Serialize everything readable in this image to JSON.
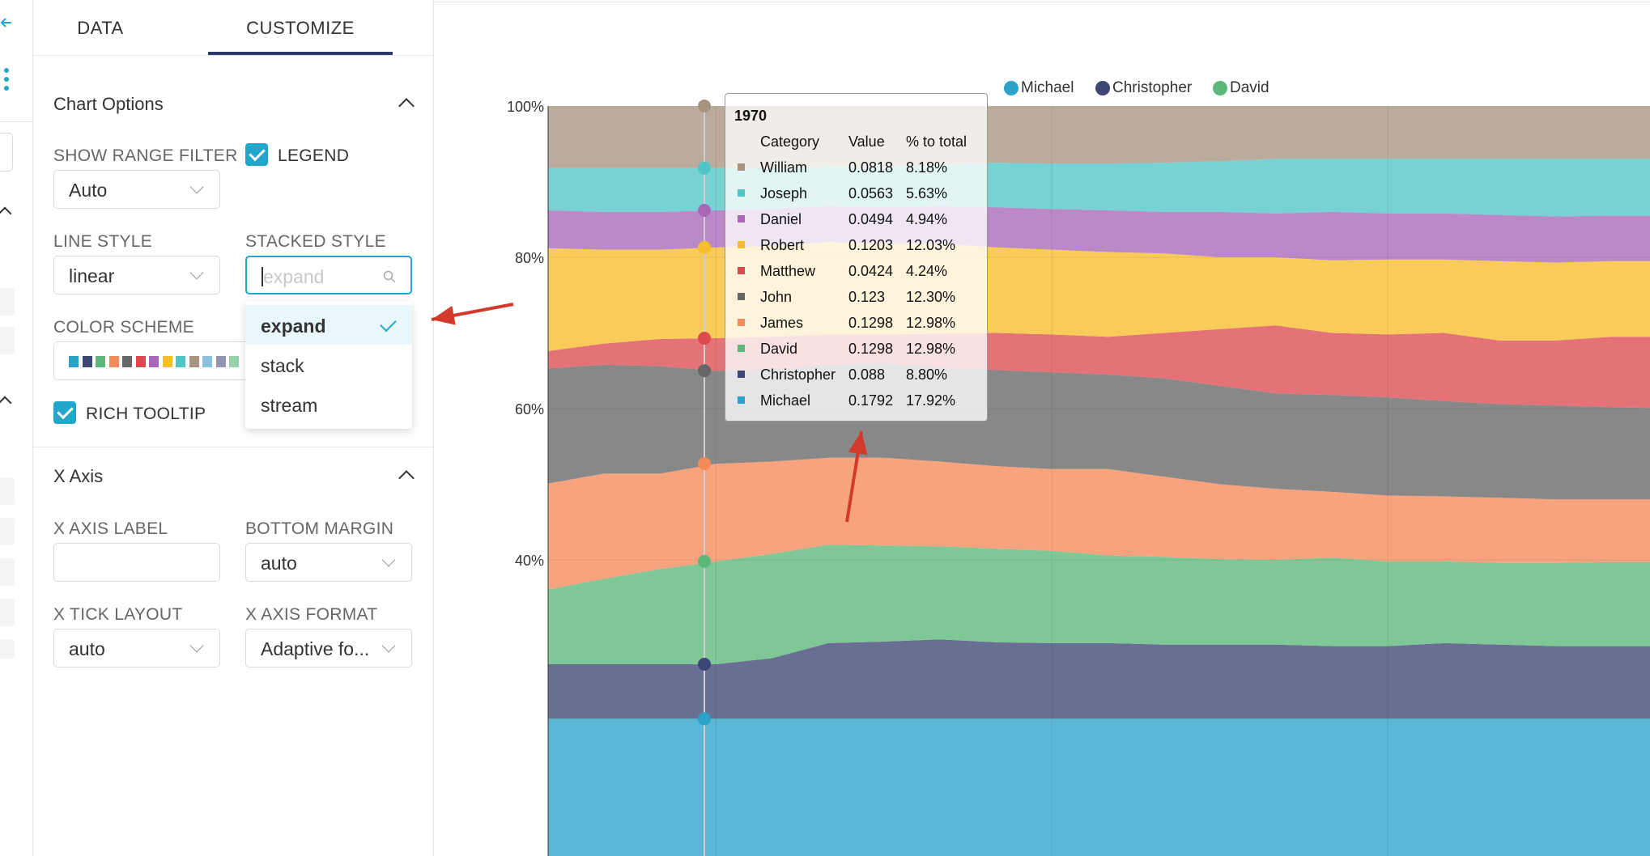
{
  "tabs": {
    "data_label": "DATA",
    "customize_label": "CUSTOMIZE"
  },
  "chart_options": {
    "section_title": "Chart Options",
    "show_range_filter": {
      "label": "SHOW RANGE FILTER",
      "value": "Auto"
    },
    "legend": {
      "label": "LEGEND",
      "checked": true
    },
    "line_style": {
      "label": "LINE STYLE",
      "value": "linear"
    },
    "stacked_style": {
      "label": "STACKED STYLE",
      "placeholder": "expand",
      "options": [
        {
          "label": "expand",
          "selected": true
        },
        {
          "label": "stack"
        },
        {
          "label": "stream"
        }
      ]
    },
    "color_scheme": {
      "label": "COLOR SCHEME",
      "swatches": [
        "#2ba3c9",
        "#3d4675",
        "#5cb77a",
        "#f58a5a",
        "#666666",
        "#dc4a4f",
        "#a868b7",
        "#f7be2b",
        "#4fc5c7",
        "#a69481",
        "#8ac3e0",
        "#8f95b2",
        "#96d1a8"
      ]
    },
    "rich_tooltip": {
      "label": "RICH TOOLTIP",
      "checked": true
    }
  },
  "x_axis": {
    "section_title": "X Axis",
    "x_axis_label": {
      "label": "X AXIS LABEL",
      "value": ""
    },
    "bottom_margin": {
      "label": "BOTTOM MARGIN",
      "value": "auto"
    },
    "x_tick_layout": {
      "label": "X TICK LAYOUT",
      "value": "auto"
    },
    "x_axis_format": {
      "label": "X AXIS FORMAT",
      "value": "Adaptive fo..."
    }
  },
  "legend_items": [
    {
      "name": "Michael",
      "color": "#2ba3c9"
    },
    {
      "name": "Christopher",
      "color": "#3d4675"
    },
    {
      "name": "David",
      "color": "#5cb77a"
    }
  ],
  "tooltip": {
    "title": "1970",
    "headers": [
      "Category",
      "Value",
      "% to total"
    ],
    "rows": [
      {
        "category": "William",
        "value": "0.0818",
        "pct": "8.18%",
        "color": "#a69481"
      },
      {
        "category": "Joseph",
        "value": "0.0563",
        "pct": "5.63%",
        "color": "#4fc5c7"
      },
      {
        "category": "Daniel",
        "value": "0.0494",
        "pct": "4.94%",
        "color": "#a868b7"
      },
      {
        "category": "Robert",
        "value": "0.1203",
        "pct": "12.03%",
        "color": "#f7be2b"
      },
      {
        "category": "Matthew",
        "value": "0.0424",
        "pct": "4.24%",
        "color": "#dc4a4f"
      },
      {
        "category": "John",
        "value": "0.123",
        "pct": "12.30%",
        "color": "#666666"
      },
      {
        "category": "James",
        "value": "0.1298",
        "pct": "12.98%",
        "color": "#f58a5a"
      },
      {
        "category": "David",
        "value": "0.1298",
        "pct": "12.98%",
        "color": "#5cb77a"
      },
      {
        "category": "Christopher",
        "value": "0.088",
        "pct": "8.80%",
        "color": "#3d4675"
      },
      {
        "category": "Michael",
        "value": "0.1792",
        "pct": "17.92%",
        "color": "#2ba3c9"
      }
    ]
  },
  "chart_data": {
    "type": "area",
    "stacked_style": "expand",
    "y_ticks": [
      "100%",
      "80%",
      "60%",
      "40%"
    ],
    "ylim": [
      0.26,
      1.0
    ],
    "x_steps": [
      0,
      1,
      2,
      3,
      4,
      5,
      6,
      7,
      8,
      9,
      10,
      11,
      12,
      13,
      14,
      15,
      16,
      17,
      18,
      19,
      20
    ],
    "hover_x_index": 3,
    "boundaries": [
      {
        "series": "Michael",
        "color": "#2ba3c9",
        "top": [
          0.19,
          0.19,
          0.19,
          0.19,
          0.19,
          0.19,
          0.19,
          0.19,
          0.19,
          0.19,
          0.19,
          0.19,
          0.19,
          0.19,
          0.19,
          0.19,
          0.19,
          0.19,
          0.19,
          0.19,
          0.19
        ]
      },
      {
        "series": "Christopher",
        "color": "#3d4675",
        "top": [
          0.262,
          0.262,
          0.262,
          0.262,
          0.27,
          0.29,
          0.292,
          0.295,
          0.291,
          0.29,
          0.29,
          0.288,
          0.288,
          0.288,
          0.286,
          0.286,
          0.29,
          0.288,
          0.286,
          0.286,
          0.286
        ]
      },
      {
        "series": "David",
        "color": "#5cb77a",
        "top": [
          0.361,
          0.375,
          0.388,
          0.398,
          0.408,
          0.42,
          0.419,
          0.418,
          0.415,
          0.412,
          0.406,
          0.404,
          0.401,
          0.4,
          0.403,
          0.398,
          0.398,
          0.396,
          0.396,
          0.397,
          0.397
        ]
      },
      {
        "series": "James",
        "color": "#f58a5a",
        "top": [
          0.501,
          0.514,
          0.514,
          0.527,
          0.53,
          0.535,
          0.535,
          0.53,
          0.524,
          0.52,
          0.52,
          0.51,
          0.5,
          0.494,
          0.49,
          0.485,
          0.484,
          0.482,
          0.48,
          0.48,
          0.48
        ]
      },
      {
        "series": "John",
        "color": "#666666",
        "top": [
          0.653,
          0.658,
          0.656,
          0.65,
          0.652,
          0.658,
          0.66,
          0.655,
          0.651,
          0.648,
          0.645,
          0.64,
          0.63,
          0.62,
          0.618,
          0.615,
          0.61,
          0.606,
          0.604,
          0.602,
          0.6
        ]
      },
      {
        "series": "Matthew",
        "color": "#dc4a4f",
        "top": [
          0.676,
          0.686,
          0.692,
          0.693,
          0.695,
          0.698,
          0.698,
          0.699,
          0.7,
          0.698,
          0.695,
          0.7,
          0.705,
          0.71,
          0.7,
          0.698,
          0.7,
          0.69,
          0.69,
          0.695,
          0.695
        ]
      },
      {
        "series": "Robert",
        "color": "#f7be2b",
        "top": [
          0.812,
          0.81,
          0.81,
          0.813,
          0.815,
          0.82,
          0.818,
          0.818,
          0.813,
          0.81,
          0.807,
          0.805,
          0.8,
          0.8,
          0.796,
          0.797,
          0.797,
          0.795,
          0.793,
          0.795,
          0.795
        ]
      },
      {
        "series": "Daniel",
        "color": "#a868b7",
        "top": [
          0.862,
          0.86,
          0.86,
          0.862,
          0.864,
          0.868,
          0.866,
          0.868,
          0.866,
          0.864,
          0.862,
          0.86,
          0.86,
          0.858,
          0.86,
          0.858,
          0.858,
          0.856,
          0.854,
          0.855,
          0.855
        ]
      },
      {
        "series": "Joseph",
        "color": "#4fc5c7",
        "top": [
          0.918,
          0.918,
          0.918,
          0.918,
          0.918,
          0.92,
          0.92,
          0.922,
          0.925,
          0.924,
          0.924,
          0.925,
          0.927,
          0.93,
          0.93,
          0.93,
          0.93,
          0.93,
          0.93,
          0.93,
          0.93
        ]
      },
      {
        "series": "William",
        "color": "#a69481",
        "top": [
          1,
          1,
          1,
          1,
          1,
          1,
          1,
          1,
          1,
          1,
          1,
          1,
          1,
          1,
          1,
          1,
          1,
          1,
          1,
          1,
          1
        ]
      }
    ]
  },
  "annotations": {
    "arrow_color": "#d33a2c"
  }
}
